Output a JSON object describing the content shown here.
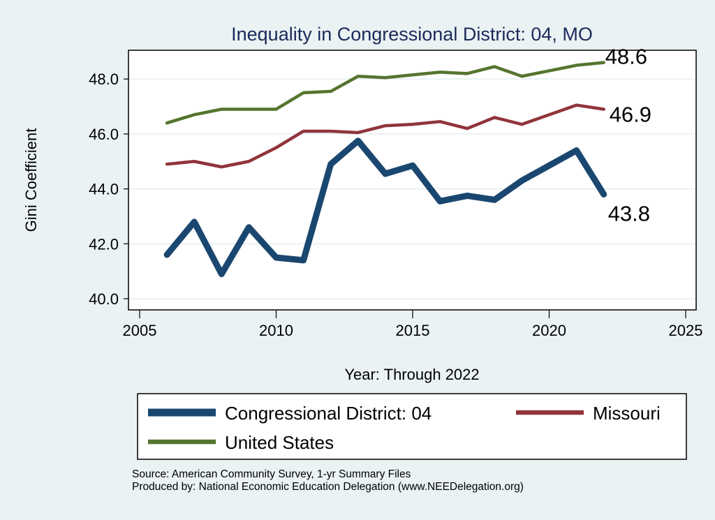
{
  "chart_data": {
    "type": "line",
    "title": "Inequality in Congressional District:  04, MO",
    "xlabel": "Year: Through 2022",
    "ylabel": "Gini Coefficient",
    "xlim": [
      2005,
      2025
    ],
    "ylim": [
      40,
      48.8
    ],
    "xticks": [
      "2005",
      "2010",
      "2015",
      "2020",
      "2025"
    ],
    "yticks": [
      "40.0",
      "42.0",
      "44.0",
      "46.0",
      "48.0"
    ],
    "grid": true,
    "x": [
      2006,
      2007,
      2008,
      2009,
      2010,
      2011,
      2012,
      2013,
      2014,
      2015,
      2016,
      2017,
      2018,
      2019,
      2020,
      2021,
      2022
    ],
    "series": [
      {
        "name": "Congressional District:  04",
        "color": "#1a476f",
        "end_label": "43.8",
        "values": [
          41.6,
          42.8,
          40.9,
          42.6,
          41.5,
          41.4,
          44.9,
          45.75,
          44.55,
          44.85,
          43.55,
          43.75,
          43.6,
          44.3,
          44.85,
          45.4,
          43.8
        ]
      },
      {
        "name": "Missouri",
        "color": "#90353b",
        "end_label": "46.9",
        "values": [
          44.9,
          45.0,
          44.8,
          45.0,
          45.5,
          46.1,
          46.1,
          46.05,
          46.3,
          46.35,
          46.45,
          46.2,
          46.6,
          46.35,
          46.7,
          47.05,
          46.9
        ]
      },
      {
        "name": "United States",
        "color": "#55752f",
        "end_label": "48.6",
        "values": [
          46.4,
          46.7,
          46.9,
          46.9,
          46.9,
          47.5,
          47.55,
          48.1,
          48.05,
          48.15,
          48.25,
          48.2,
          48.45,
          48.1,
          48.3,
          48.5,
          48.6
        ]
      }
    ],
    "legend_position": "bottom"
  },
  "footer": {
    "source": "Source: American Community Survey, 1-yr Summary Files",
    "produced": "Produced by: National Economic Education Delegation (www.NEEDelegation.org)"
  }
}
